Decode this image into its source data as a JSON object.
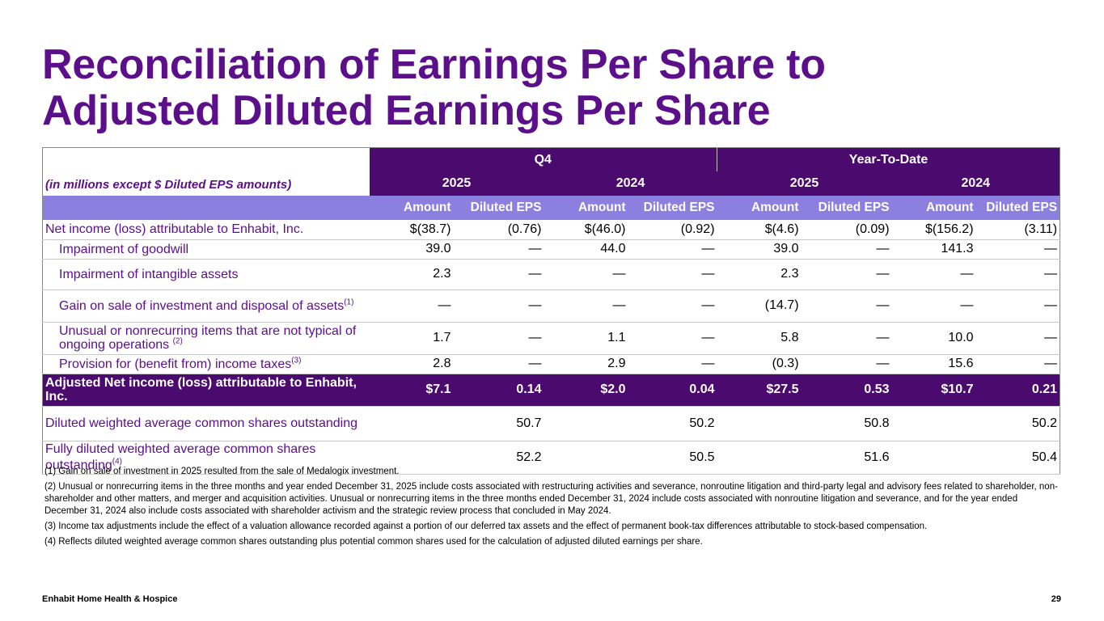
{
  "title": {
    "line1": "Reconciliation of Earnings Per Share to",
    "line2": "Adjusted Diluted Earnings Per Share"
  },
  "table": {
    "caption": "(in millions except $ Diluted EPS amounts)",
    "periods": [
      "Q4",
      "Year-To-Date"
    ],
    "years": [
      "2025",
      "2024",
      "2025",
      "2024"
    ],
    "col_headers": [
      "Amount",
      "Diluted EPS",
      "Amount",
      "Diluted EPS",
      "Amount",
      "Diluted EPS",
      "Amount",
      "Diluted EPS"
    ],
    "rows": [
      {
        "label": "Net income (loss) attributable to Enhabit, Inc.",
        "sup": "",
        "values": [
          "$(38.7)",
          "(0.76)",
          "$(46.0)",
          "(0.92)",
          "$(4.6)",
          "(0.09)",
          "$(156.2)",
          "(3.11)"
        ]
      },
      {
        "label": "Impairment of goodwill",
        "sup": "",
        "values": [
          "39.0",
          "—",
          "44.0",
          "—",
          "39.0",
          "—",
          "141.3",
          "—"
        ]
      },
      {
        "label": "Impairment of intangible assets",
        "sup": "",
        "values": [
          "2.3",
          "—",
          "—",
          "—",
          "2.3",
          "—",
          "—",
          "—"
        ]
      },
      {
        "label": "Gain on sale of investment and disposal of assets",
        "sup": "(1)",
        "values": [
          "—",
          "—",
          "—",
          "—",
          "(14.7)",
          "—",
          "—",
          "—"
        ]
      },
      {
        "label": "Unusual or nonrecurring items that are not typical of ongoing operations ",
        "sup": "(2)",
        "values": [
          "1.7",
          "—",
          "1.1",
          "—",
          "5.8",
          "—",
          "10.0",
          "—"
        ]
      },
      {
        "label": "Provision for (benefit from) income taxes",
        "sup": "(3)",
        "values": [
          "2.8",
          "—",
          "2.9",
          "—",
          "(0.3)",
          "—",
          "15.6",
          "—"
        ]
      }
    ],
    "adjusted": {
      "label": "Adjusted Net income (loss) attributable to Enhabit, Inc.",
      "values": [
        "$7.1",
        "0.14",
        "$2.0",
        "0.04",
        "$27.5",
        "0.53",
        "$10.7",
        "0.21"
      ]
    },
    "shares": [
      {
        "label": "Diluted weighted average common shares outstanding",
        "sup": "",
        "values": [
          "50.7",
          "50.2",
          "50.8",
          "50.2"
        ]
      },
      {
        "label": "Fully diluted weighted average common shares outstanding",
        "sup": "(4)",
        "values": [
          "52.2",
          "50.5",
          "51.6",
          "50.4"
        ]
      }
    ]
  },
  "footnotes": [
    "(1) Gain on sale of investment in 2025 resulted from the sale of Medalogix investment.",
    "(2) Unusual or nonrecurring items in the three months and year ended December 31, 2025 include costs associated with restructuring activities and severance, nonroutine litigation and third-party legal and advisory fees related to shareholder, non-shareholder and other matters, and merger and acquisition activities. Unusual or nonrecurring items in the three months ended December 31, 2024 include costs associated with nonroutine litigation and severance, and for the year ended December 31, 2024 also include costs associated with shareholder activism and the strategic review process that concluded in May 2024.",
    "(3) Income tax adjustments include the effect of a valuation allowance recorded against a portion of our deferred tax assets and the effect of permanent book-tax differences attributable to stock-based compensation.",
    "(4) Reflects diluted weighted average common shares outstanding plus potential common shares used for the calculation of adjusted diluted earnings per share."
  ],
  "footer": {
    "company": "Enhabit Home Health & Hospice",
    "page": "29"
  },
  "colors": {
    "brand_purple": "#5b0f8a",
    "header_dark": "#4a0a6e",
    "header_light": "#8b7fe0"
  }
}
